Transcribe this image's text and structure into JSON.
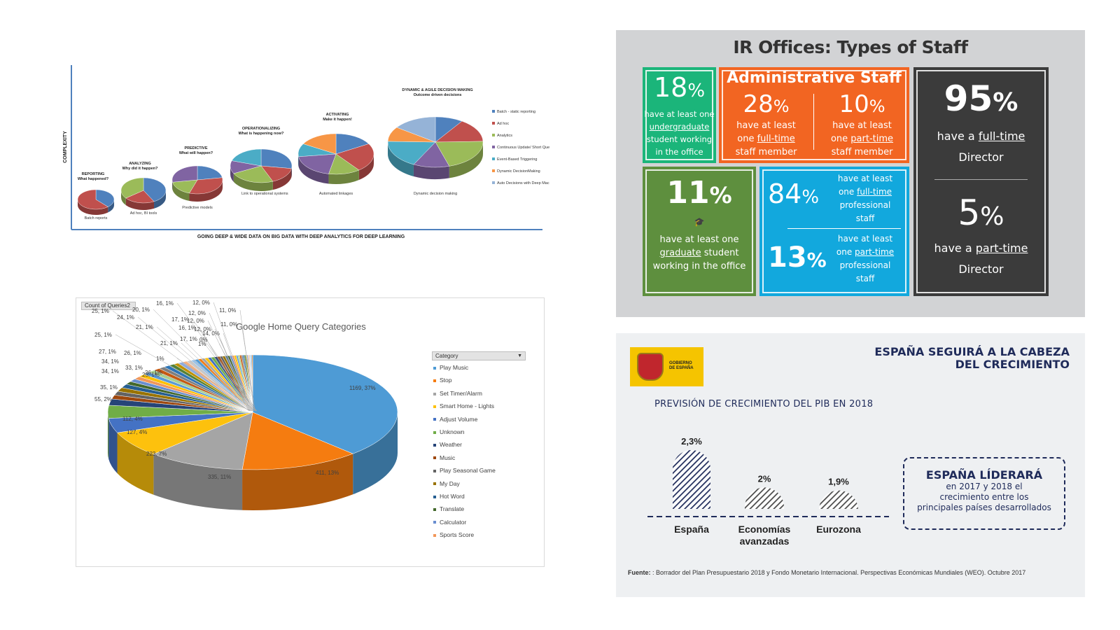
{
  "panel1": {
    "ylabel": "COMPLEXITY",
    "xlabel": "GOING DEEP & WIDE DATA  ON BIG DATA WITH DEEP ANALYTICS  FOR DEEP LEARNING",
    "stages": [
      {
        "title": "REPORTING",
        "subtitle": "What happened?",
        "caption": "Batch reports"
      },
      {
        "title": "ANALYZING",
        "subtitle": "Why did it happen?",
        "caption": "Ad hoc, BI tools"
      },
      {
        "title": "PREDICTIVE",
        "subtitle": "What will happen?",
        "caption": "Predictive models"
      },
      {
        "title": "OPERATIONALIZING",
        "subtitle": "What is happening now?",
        "caption": "Link to operational systems"
      },
      {
        "title": "ACTIVATING",
        "subtitle": "Make it happen!",
        "caption": "Automated linkages"
      },
      {
        "title": "DYNAMIC & AGILE DECISION MAKING",
        "subtitle": "Outcome driven decisions",
        "caption": "Dynamic decision making"
      }
    ],
    "legend": [
      {
        "label": "Batch - static reporting",
        "color": "#4f81bd"
      },
      {
        "label": "Ad hoc",
        "color": "#c0504d"
      },
      {
        "label": "Analytics",
        "color": "#9bbb59"
      },
      {
        "label": "Continuous Update/ Short Queries",
        "color": "#8064a2"
      },
      {
        "label": "Event-Based Triggering",
        "color": "#4bacc6"
      },
      {
        "label": "Dynamic DecisionMaking",
        "color": "#f79646"
      },
      {
        "label": "Auto Decisions with Deep Machine Learning",
        "color": "#95b3d7"
      }
    ]
  },
  "panel2": {
    "field_button": "Count of Queries2",
    "legend_header": "Category",
    "legend_dropdown_icon": "dropdown-arrow-icon"
  },
  "panel3": {
    "title": "IR Offices: Types of Staff",
    "admin_header": "Administrative Staff",
    "box_18": {
      "pct": "18",
      "sign": "%",
      "l1": "have at least one",
      "l2": "undergraduate",
      "l3": "student working",
      "l4": "in the office"
    },
    "box_28": {
      "pct": "28",
      "sign": "%",
      "l1": "have at least",
      "l2a": "one ",
      "l2b": "full-time",
      "l3": "staff member"
    },
    "box_10": {
      "pct": "10",
      "sign": "%",
      "l1": "have at least",
      "l2a": "one ",
      "l2b": "part-time",
      "l3": "staff member"
    },
    "box_11": {
      "pct": "11",
      "sign": "%",
      "l1": "have at least one",
      "l2": "graduate",
      "l2b": " student",
      "l3": "working in the office"
    },
    "box_84": {
      "pct": "84",
      "sign": "%",
      "l1": "have at least",
      "l2a": "one ",
      "l2b": "full-time",
      "l3": "professional",
      "l4": "staff"
    },
    "box_13": {
      "pct": "13",
      "sign": "%",
      "l1": "have at least",
      "l2a": "one ",
      "l2b": "part-time",
      "l3": "professional",
      "l4": "staff"
    },
    "box_95": {
      "pct": "95",
      "sign": "%",
      "l1a": "have a ",
      "l1b": "full-time",
      "l2": "Director"
    },
    "box_5": {
      "pct": "5",
      "sign": "%",
      "l1a": "have a ",
      "l1b": "part-time",
      "l2": "Director"
    },
    "colors": {
      "green": "#1bb57a",
      "orange": "#f26522",
      "darkgreen": "#5e8f3e",
      "blue": "#12a8dd",
      "dark": "#3b3b3b"
    }
  },
  "panel4": {
    "title_l1": "ESPAÑA SEGUIRÁ A LA CABEZA",
    "title_l2": "DEL CRECIMIENTO",
    "logo_l1": "GOBIERNO",
    "logo_l2": "DE ESPAÑA",
    "subtitle": "PREVISIÓN DE CRECIMIENTO DEL PIB EN 2018",
    "box_title": "ESPAÑA LÍDERARÁ",
    "box_l1": "en 2017 y 2018 el",
    "box_l2": "crecimiento entre los",
    "box_l3": "principales países desarrollados",
    "source_label": "Fuente:",
    "source_text": " : Borrador del Plan Presupuestario 2018 y Fondo Monetario Internacional. Perspectivas Económicas Mundiales (WEO).  Octubre 2017"
  },
  "chart_data": [
    {
      "type": "pie",
      "title": "Google Home Query Categories",
      "legend_title": "Category",
      "categories": [
        "Play Music",
        "Stop",
        "Set Timer/Alarm",
        "Smart Home - Lights",
        "Adjust Volume",
        "Unknown",
        "Weather",
        "Music",
        "Play Seasonal Game",
        "My Day",
        "Hot Word",
        "Translate",
        "Calculator",
        "Sports Score"
      ],
      "values": [
        1169,
        411,
        335,
        223,
        127,
        112,
        55,
        35,
        34,
        34,
        33,
        27,
        26,
        26
      ],
      "data_labels": [
        "1169, 37%",
        "411, 13%",
        "335, 11%",
        "223, 7%",
        "127, 4%",
        "112, 4%",
        "55, 2%",
        "35, 1%",
        "34, 1%",
        "34, 1%",
        "33, 1%",
        "27, 1%",
        "26, 1%",
        "26, 1%"
      ],
      "extra_labels": [
        "25, 1%",
        "25, 1%",
        "24, 1%",
        "23, 1%",
        "21, 1%",
        "21, 1%",
        "20, 1%",
        "17, 1%",
        "17, 1%",
        "16, 1%",
        "16, 1%",
        "14, 0%",
        "12, 0%",
        "12, 0%",
        "12, 0%",
        "12, 0%",
        "11, 0%",
        "11, 0%",
        "1%",
        "1%",
        "0%"
      ],
      "colors": [
        "#4e9bd5",
        "#f57c10",
        "#a5a5a5",
        "#fdc10d",
        "#4472c4",
        "#70ad47",
        "#264478",
        "#9e480e",
        "#636363",
        "#997300",
        "#255e91",
        "#43682b",
        "#698ed0",
        "#f1975a"
      ]
    },
    {
      "type": "bar",
      "title": "PREVISIÓN DE CRECIMIENTO DEL PIB EN 2018",
      "categories": [
        "España",
        "Economías avanzadas",
        "Eurozona"
      ],
      "values": [
        2.3,
        2.0,
        1.9
      ],
      "data_labels": [
        "2,3%",
        "2%",
        "1,9%"
      ],
      "color": "#1f2b5a"
    }
  ]
}
